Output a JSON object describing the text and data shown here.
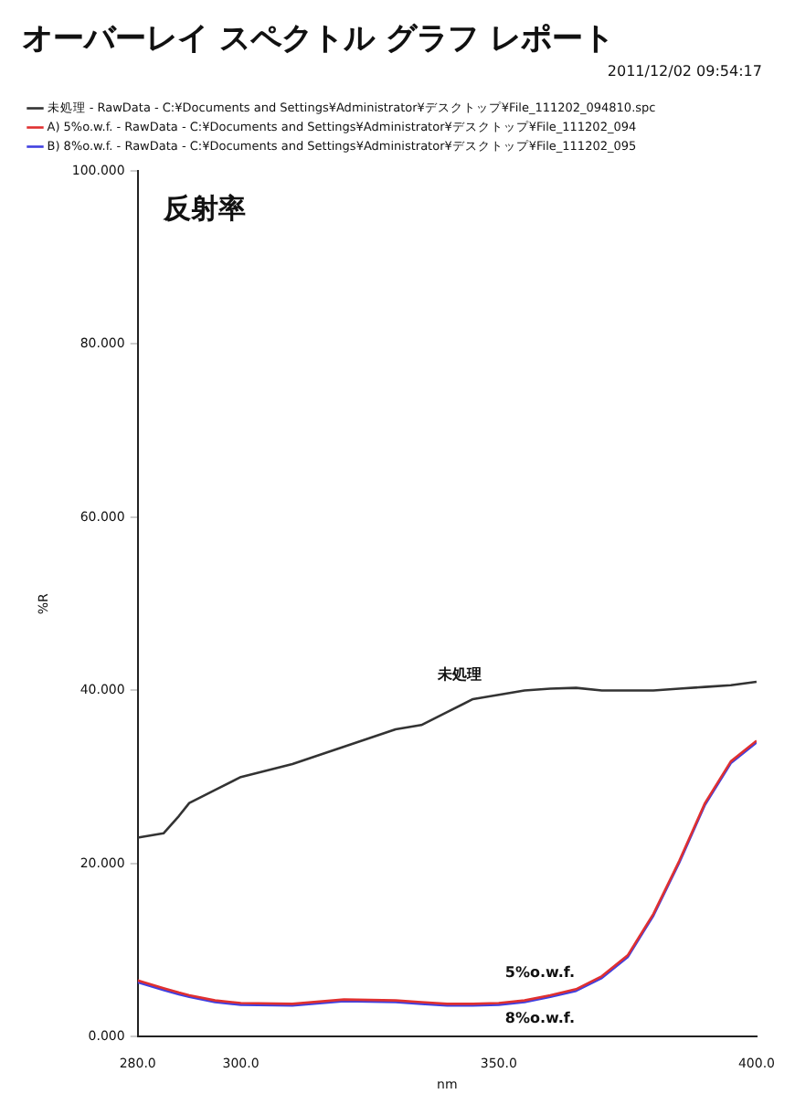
{
  "chart_data": {
    "type": "line",
    "title": "オーバーレイ スペクトル グラフ レポート",
    "subtitle": "2011/12/02 09:54:17",
    "xlabel": "nm",
    "ylabel": "%R",
    "x": [
      280,
      285,
      288,
      290,
      295,
      300,
      310,
      320,
      330,
      335,
      340,
      345,
      350,
      355,
      360,
      365,
      370,
      375,
      380,
      385,
      390,
      395,
      400
    ],
    "series": [
      {
        "name": "未処理 - RawData - C:¥Documents and Settings¥Administrator¥デスクトップ¥File_111202_094810.spc",
        "color": "#333333",
        "values": [
          23,
          23.5,
          25.5,
          27,
          28.5,
          30,
          31.5,
          33.5,
          35.5,
          36,
          37.5,
          39,
          39.5,
          40,
          40.2,
          40.3,
          40,
          40,
          40,
          40.2,
          40.4,
          40.6,
          41
        ]
      },
      {
        "name": "A) 5%o.w.f. - RawData - C:¥Documents and Settings¥Administrator¥デスクトップ¥File_111202_094",
        "color": "#e03030",
        "values": [
          6.5,
          5.6,
          5.1,
          4.8,
          4.2,
          3.9,
          3.8,
          4.3,
          4.2,
          4,
          3.8,
          3.8,
          3.9,
          4.2,
          4.8,
          5.5,
          7,
          9.4,
          14.2,
          20.3,
          27,
          31.8,
          34.2
        ]
      },
      {
        "name": "B) 8%o.w.f. - RawData - C:¥Documents and Settings¥Administrator¥デスクトップ¥File_111202_095",
        "color": "#4040e0",
        "values": [
          6.3,
          5.4,
          4.9,
          4.6,
          4,
          3.7,
          3.6,
          4.1,
          4,
          3.8,
          3.6,
          3.6,
          3.7,
          4,
          4.6,
          5.3,
          6.8,
          9.2,
          14,
          20.1,
          26.8,
          31.6,
          34
        ]
      }
    ],
    "xlim": [
      280,
      400
    ],
    "xticks": [
      {
        "value": 280,
        "label": "280.0"
      },
      {
        "value": 300,
        "label": "300.0"
      },
      {
        "value": 350,
        "label": "350.0"
      },
      {
        "value": 400,
        "label": "400.0"
      }
    ],
    "ylim": [
      0,
      100
    ],
    "yticks": [
      {
        "value": 0,
        "label": "0.000"
      },
      {
        "value": 20,
        "label": "20.000"
      },
      {
        "value": 40,
        "label": "40.000"
      },
      {
        "value": 60,
        "label": "60.000"
      },
      {
        "value": 80,
        "label": "80.000"
      },
      {
        "value": 100,
        "label": "100.000"
      }
    ],
    "grid": false,
    "legend": "top",
    "marker": "none",
    "line_style": "solid",
    "annotations": [
      "反射率",
      "未処理",
      "5%o.w.f.",
      "8%o.w.f."
    ]
  }
}
